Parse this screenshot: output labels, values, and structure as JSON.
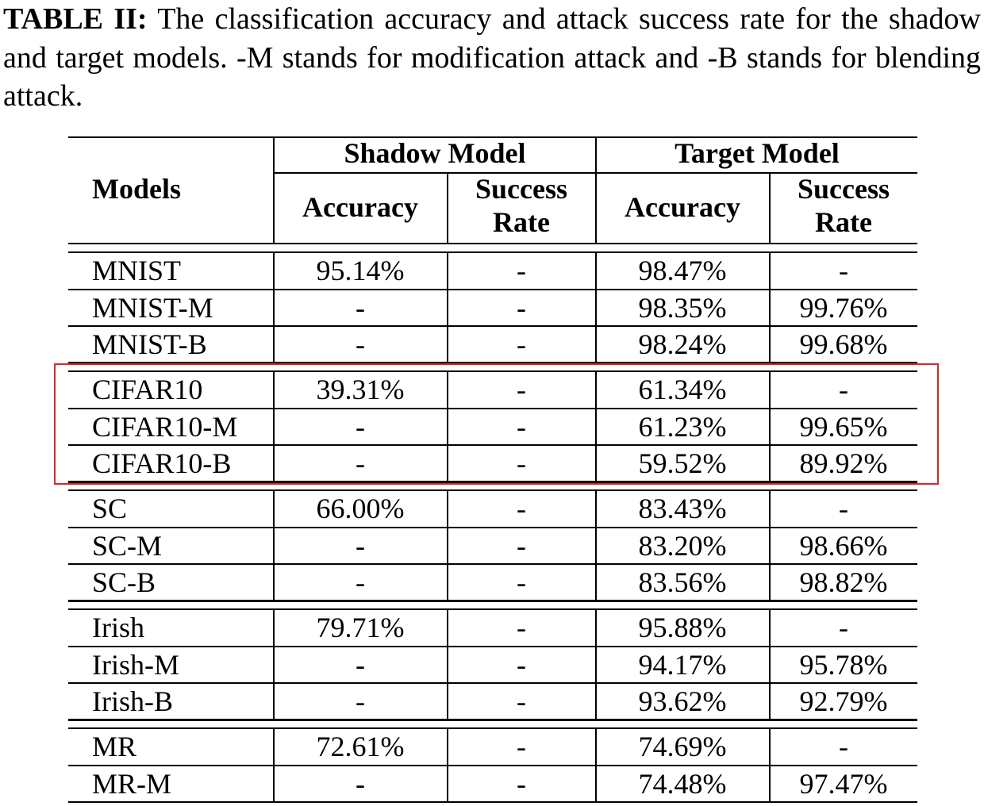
{
  "caption": {
    "label": "TABLE II:",
    "text": " The classification accuracy and attack success rate for the shadow and target models. -M stands for modification attack and -B stands for blending attack."
  },
  "header": {
    "models": "Models",
    "shadow_model": "Shadow Model",
    "target_model": "Target Model",
    "accuracy": "Accuracy",
    "success": "Success",
    "rate": "Rate"
  },
  "groups": [
    {
      "rows": [
        {
          "model": "MNIST",
          "shadow_acc": "95.14%",
          "shadow_sr": "-",
          "target_acc": "98.47%",
          "target_sr": "-"
        },
        {
          "model": "MNIST-M",
          "shadow_acc": "-",
          "shadow_sr": "-",
          "target_acc": "98.35%",
          "target_sr": "99.76%"
        },
        {
          "model": "MNIST-B",
          "shadow_acc": "-",
          "shadow_sr": "-",
          "target_acc": "98.24%",
          "target_sr": "99.68%"
        }
      ]
    },
    {
      "rows": [
        {
          "model": "CIFAR10",
          "shadow_acc": "39.31%",
          "shadow_sr": "-",
          "target_acc": "61.34%",
          "target_sr": "-"
        },
        {
          "model": "CIFAR10-M",
          "shadow_acc": "-",
          "shadow_sr": "-",
          "target_acc": "61.23%",
          "target_sr": "99.65%"
        },
        {
          "model": "CIFAR10-B",
          "shadow_acc": "-",
          "shadow_sr": "-",
          "target_acc": "59.52%",
          "target_sr": "89.92%"
        }
      ]
    },
    {
      "rows": [
        {
          "model": "SC",
          "shadow_acc": "66.00%",
          "shadow_sr": "-",
          "target_acc": "83.43%",
          "target_sr": "-"
        },
        {
          "model": "SC-M",
          "shadow_acc": "-",
          "shadow_sr": "-",
          "target_acc": "83.20%",
          "target_sr": "98.66%"
        },
        {
          "model": "SC-B",
          "shadow_acc": "-",
          "shadow_sr": "-",
          "target_acc": "83.56%",
          "target_sr": "98.82%"
        }
      ]
    },
    {
      "rows": [
        {
          "model": "Irish",
          "shadow_acc": "79.71%",
          "shadow_sr": "-",
          "target_acc": "95.88%",
          "target_sr": "-"
        },
        {
          "model": "Irish-M",
          "shadow_acc": "-",
          "shadow_sr": "-",
          "target_acc": "94.17%",
          "target_sr": "95.78%"
        },
        {
          "model": "Irish-B",
          "shadow_acc": "-",
          "shadow_sr": "-",
          "target_acc": "93.62%",
          "target_sr": "92.79%"
        }
      ]
    },
    {
      "rows": [
        {
          "model": "MR",
          "shadow_acc": "72.61%",
          "shadow_sr": "-",
          "target_acc": "74.69%",
          "target_sr": "-"
        },
        {
          "model": "MR-M",
          "shadow_acc": "-",
          "shadow_sr": "-",
          "target_acc": "74.48%",
          "target_sr": "97.47%"
        }
      ]
    }
  ],
  "highlight_color": "#d62728"
}
